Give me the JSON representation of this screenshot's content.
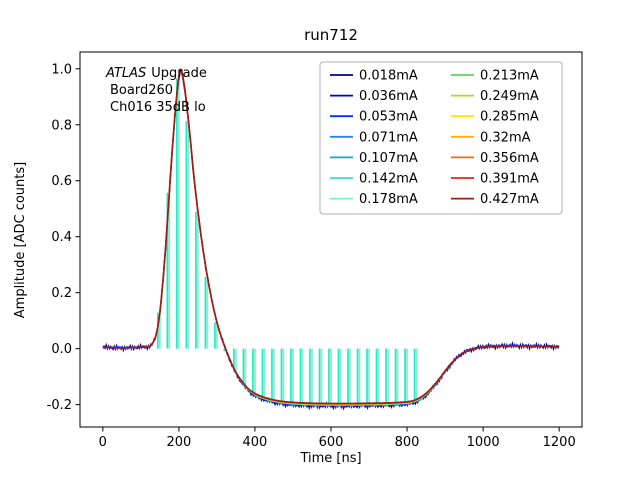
{
  "title": "run712",
  "chart_data": {
    "type": "line",
    "title": "run712",
    "xlabel": "Time [ns]",
    "ylabel": "Amplitude [ADC counts]",
    "xlim": [
      -60,
      1260
    ],
    "ylim": [
      -0.28,
      1.06
    ],
    "xticks": [
      0,
      200,
      400,
      600,
      800,
      1000,
      1200
    ],
    "yticks": [
      -0.2,
      0.0,
      0.2,
      0.4,
      0.6,
      0.8,
      1.0
    ],
    "grid": false,
    "legend": {
      "position": "upper right",
      "columns": 2
    },
    "annotation": {
      "brand": "ATLAS",
      "line1": "Upgrade",
      "line2": "Board260",
      "line3": "Ch016 35dB lo"
    },
    "series": [
      {
        "name": "0.018mA",
        "color": "#00008b"
      },
      {
        "name": "0.036mA",
        "color": "#0000cd"
      },
      {
        "name": "0.053mA",
        "color": "#0030ff"
      },
      {
        "name": "0.071mA",
        "color": "#2a7fff"
      },
      {
        "name": "0.107mA",
        "color": "#0fa8c8"
      },
      {
        "name": "0.142mA",
        "color": "#2fe0d0"
      },
      {
        "name": "0.178mA",
        "color": "#76f7c6"
      },
      {
        "name": "0.213mA",
        "color": "#5fd35f"
      },
      {
        "name": "0.249mA",
        "color": "#aadd22"
      },
      {
        "name": "0.285mA",
        "color": "#ffe600"
      },
      {
        "name": "0.32mA",
        "color": "#ffb000"
      },
      {
        "name": "0.356mA",
        "color": "#f07000"
      },
      {
        "name": "0.391mA",
        "color": "#ea2516"
      },
      {
        "name": "0.427mA",
        "color": "#9e1c16"
      }
    ],
    "stems": {
      "t_start": 150,
      "t_end": 825,
      "t_step": 25
    },
    "pulse_keypoints": {
      "x": [
        0,
        40,
        80,
        110,
        125,
        135,
        142,
        150,
        158,
        166,
        174,
        182,
        190,
        198,
        205,
        212,
        220,
        230,
        240,
        252,
        264,
        276,
        288,
        300,
        312,
        324,
        336,
        350,
        365,
        380,
        400,
        420,
        445,
        470,
        500,
        550,
        600,
        650,
        700,
        750,
        800,
        815,
        830,
        845,
        860,
        875,
        890,
        905,
        920,
        940,
        960,
        980,
        1000,
        1040,
        1080,
        1120,
        1160,
        1200
      ],
      "y": [
        0.005,
        0.003,
        0.004,
        0.006,
        0.01,
        0.03,
        0.06,
        0.13,
        0.24,
        0.38,
        0.54,
        0.7,
        0.84,
        0.95,
        1.0,
        0.96,
        0.88,
        0.75,
        0.61,
        0.47,
        0.35,
        0.25,
        0.165,
        0.095,
        0.04,
        -0.005,
        -0.045,
        -0.085,
        -0.115,
        -0.14,
        -0.16,
        -0.172,
        -0.182,
        -0.188,
        -0.192,
        -0.195,
        -0.196,
        -0.196,
        -0.195,
        -0.194,
        -0.19,
        -0.186,
        -0.178,
        -0.165,
        -0.147,
        -0.124,
        -0.098,
        -0.071,
        -0.047,
        -0.022,
        -0.007,
        0.001,
        0.006,
        0.009,
        0.01,
        0.009,
        0.008,
        0.007
      ]
    }
  }
}
